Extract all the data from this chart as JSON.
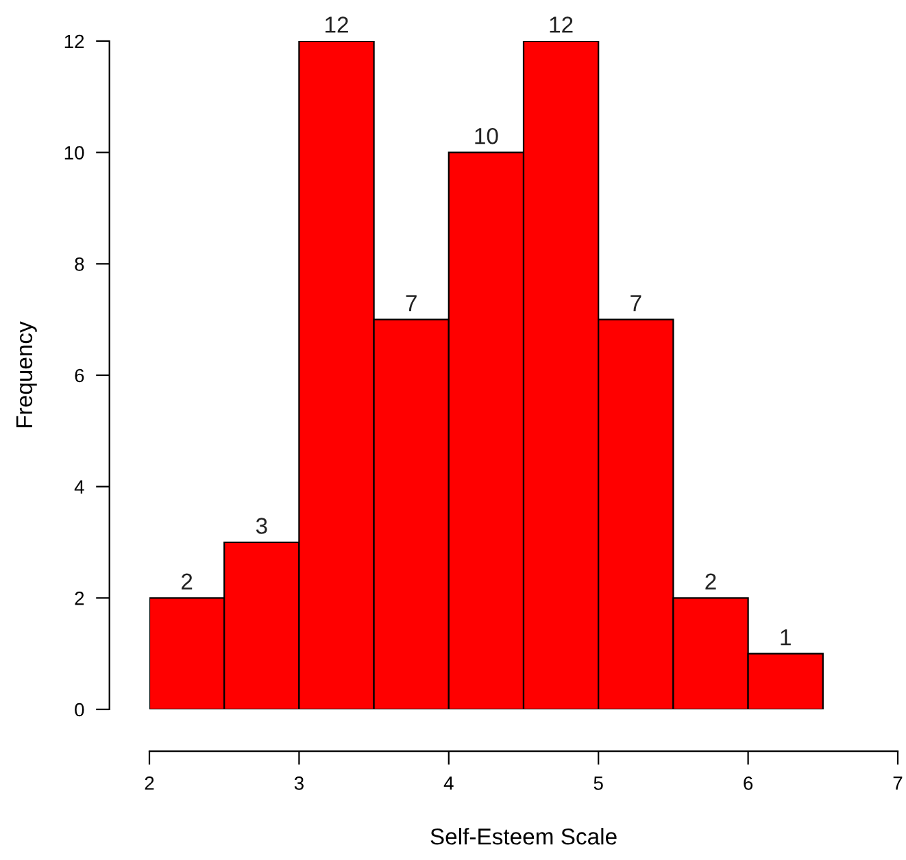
{
  "chart_data": {
    "type": "histogram",
    "xlabel": "Self-Esteem Scale",
    "ylabel": "Frequency",
    "bins": [
      2,
      2.5,
      3,
      3.5,
      4,
      4.5,
      5,
      5.5,
      6,
      6.5
    ],
    "values": [
      2,
      3,
      12,
      7,
      10,
      12,
      7,
      2,
      1
    ],
    "color": "#ff0000",
    "data_labels": true,
    "xlim": [
      2,
      7
    ],
    "xticks": [
      2,
      3,
      4,
      5,
      6,
      7
    ],
    "ylim": [
      0,
      12
    ],
    "yticks": [
      0,
      2,
      4,
      6,
      8,
      10,
      12
    ],
    "grid": false
  }
}
